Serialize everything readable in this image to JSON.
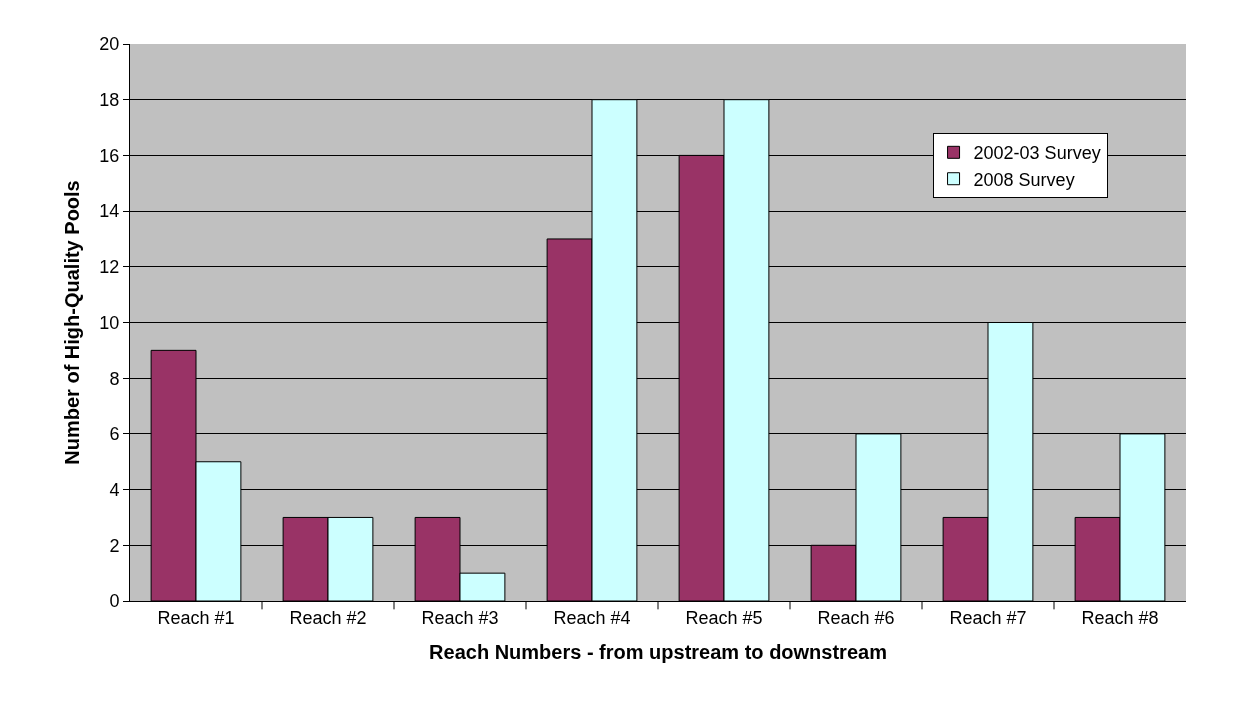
{
  "chart_data": {
    "type": "bar",
    "xlabel": "Reach Numbers - from upstream to downstream",
    "ylabel": "Number of High-Quality Pools",
    "categories": [
      "Reach #1",
      "Reach #2",
      "Reach #3",
      "Reach #4",
      "Reach #5",
      "Reach #6",
      "Reach #7",
      "Reach #8"
    ],
    "series": [
      {
        "name": "2002-03 Survey",
        "color": "#993366",
        "values": [
          9,
          3,
          3,
          13,
          16,
          2,
          3,
          3
        ]
      },
      {
        "name": "2008 Survey",
        "color": "#ccffff",
        "values": [
          5,
          3,
          1,
          18,
          18,
          6,
          10,
          6
        ]
      }
    ],
    "ylim": [
      0,
      20
    ],
    "yticks": [
      0,
      2,
      4,
      6,
      8,
      10,
      12,
      14,
      16,
      18,
      20
    ],
    "grid": "y",
    "legend": "top right"
  }
}
